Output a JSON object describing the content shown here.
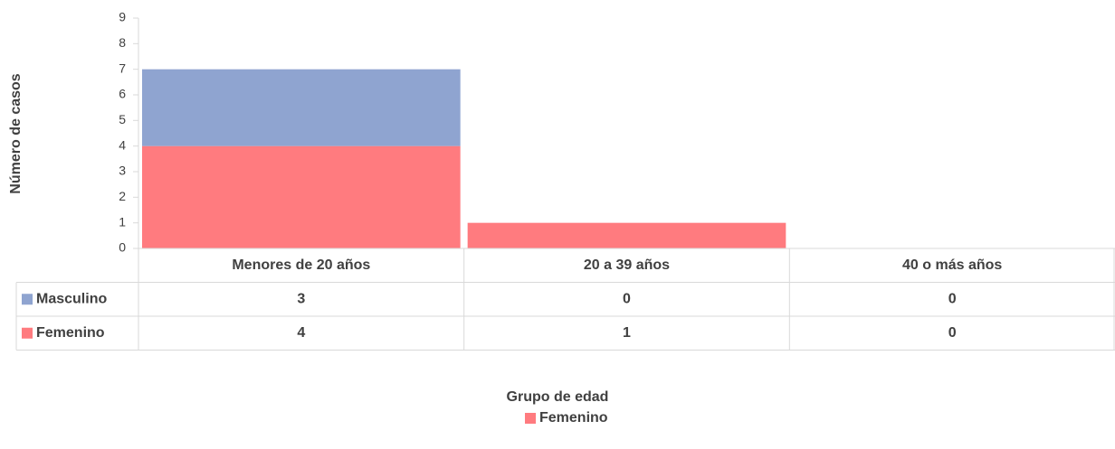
{
  "chart_data": {
    "type": "stacked_bar",
    "y_axis_title": "Número de casos",
    "x_axis_title": "Grupo de edad",
    "categories": [
      "Menores de 20 años",
      "20 a 39 años",
      "40 o más años"
    ],
    "series": [
      {
        "name": "Masculino",
        "color": "#8fa4d0",
        "values": [
          3,
          0,
          0
        ]
      },
      {
        "name": "Femenino",
        "color": "#ff7b7f",
        "values": [
          4,
          1,
          0
        ]
      }
    ],
    "stack_order": [
      "Femenino",
      "Masculino"
    ],
    "legend_series": [
      "Femenino"
    ],
    "legend_position": "bottom",
    "ylim": [
      0,
      9
    ],
    "yticks": [
      0,
      1,
      2,
      3,
      4,
      5,
      6,
      7,
      8,
      9
    ],
    "grid": false
  }
}
